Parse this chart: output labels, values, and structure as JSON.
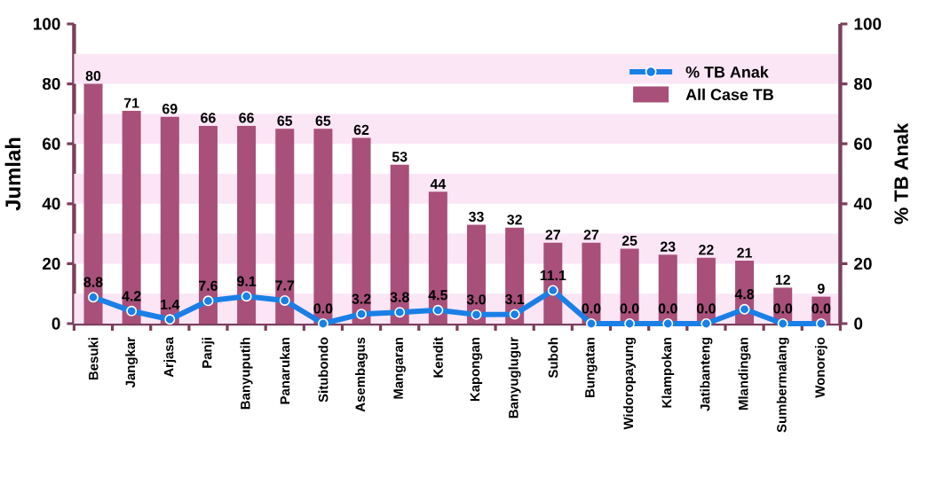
{
  "chart_data": {
    "type": "bar",
    "ylabel": "Jumlah",
    "y2label": "% TB Anak",
    "categories": [
      "Besuki",
      "Jangkar",
      "Arjasa",
      "Panji",
      "Banyuputih",
      "Panarukan",
      "Situbondo",
      "Asembagus",
      "Mangaran",
      "Kendit",
      "Kapongan",
      "Banyuglugur",
      "Suboh",
      "Bungatan",
      "Widoropayung",
      "Klampokan",
      "Jatibanteng",
      "Mlandingan",
      "Sumbermalang",
      "Wonorejo"
    ],
    "series": [
      {
        "name": "% TB Anak",
        "type": "line",
        "axis": "y2",
        "color": "#1a7fe6",
        "values": [
          8.8,
          4.2,
          1.4,
          7.6,
          9.1,
          7.7,
          0.0,
          3.2,
          3.8,
          4.5,
          3.0,
          3.1,
          11.1,
          0.0,
          0.0,
          0.0,
          0.0,
          4.8,
          0.0,
          0.0
        ],
        "value_labels": [
          "8.8",
          "4.2",
          "1.4",
          "7.6",
          "9.1",
          "7.7",
          "0.0",
          "3.2",
          "3.8",
          "4.5",
          "3.0",
          "3.1",
          "11.1",
          "0.0",
          "0.0",
          "0.0",
          "0.0",
          "4.8",
          "0.0",
          "0.0"
        ]
      },
      {
        "name": "All Case TB",
        "color": "#a8507a",
        "values": [
          80,
          71,
          69,
          66,
          66,
          65,
          65,
          62,
          53,
          44,
          33,
          32,
          27,
          27,
          25,
          23,
          22,
          21,
          12,
          9
        ],
        "value_labels": [
          "80",
          "71",
          "69",
          "66",
          "66",
          "65",
          "65",
          "62",
          "53",
          "44",
          "33",
          "32",
          "27",
          "27",
          "25",
          "23",
          "22",
          "21",
          "12",
          "9"
        ]
      }
    ],
    "ylim": [
      0,
      100
    ],
    "yticks": [
      0,
      20,
      40,
      60,
      80,
      100
    ],
    "y2lim": [
      0,
      100
    ],
    "y2ticks": [
      0,
      20,
      40,
      60,
      80,
      100
    ],
    "bands": [
      {
        "axis": "y",
        "from": 0,
        "to": 10,
        "color": "#fbe6f6"
      },
      {
        "axis": "y",
        "from": 20,
        "to": 30,
        "color": "#fbe6f6"
      },
      {
        "axis": "y",
        "from": 40,
        "to": 50,
        "color": "#fbe6f6"
      },
      {
        "axis": "y",
        "from": 60,
        "to": 70,
        "color": "#fbe6f6"
      },
      {
        "axis": "y",
        "from": 80,
        "to": 90,
        "color": "#fbe6f6"
      }
    ],
    "legend": "top right",
    "marker": "circle",
    "line_style": "solid"
  }
}
